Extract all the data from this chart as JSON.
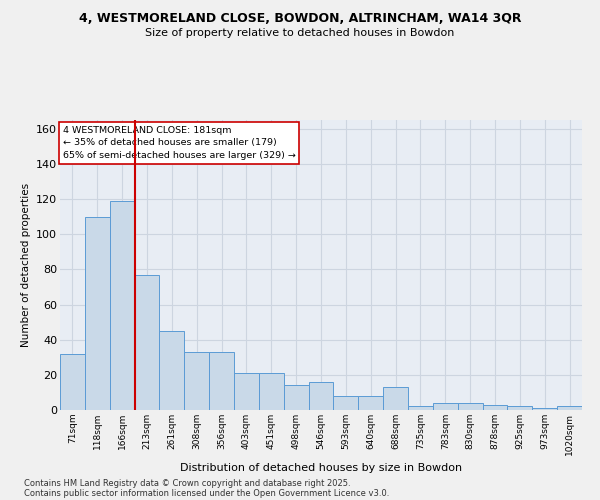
{
  "title1": "4, WESTMORELAND CLOSE, BOWDON, ALTRINCHAM, WA14 3QR",
  "title2": "Size of property relative to detached houses in Bowdon",
  "xlabel": "Distribution of detached houses by size in Bowdon",
  "ylabel": "Number of detached properties",
  "categories": [
    "71sqm",
    "118sqm",
    "166sqm",
    "213sqm",
    "261sqm",
    "308sqm",
    "356sqm",
    "403sqm",
    "451sqm",
    "498sqm",
    "546sqm",
    "593sqm",
    "640sqm",
    "688sqm",
    "735sqm",
    "783sqm",
    "830sqm",
    "878sqm",
    "925sqm",
    "973sqm",
    "1020sqm"
  ],
  "values": [
    32,
    110,
    119,
    77,
    45,
    33,
    33,
    21,
    21,
    14,
    16,
    8,
    8,
    13,
    2,
    4,
    4,
    3,
    2,
    1,
    2
  ],
  "bar_color": "#c9d9e8",
  "bar_edge_color": "#5b9bd5",
  "vline_color": "#cc0000",
  "vline_x": 2.5,
  "annotation_text": "4 WESTMORELAND CLOSE: 181sqm\n← 35% of detached houses are smaller (179)\n65% of semi-detached houses are larger (329) →",
  "annotation_box_color": "#ffffff",
  "annotation_box_edge": "#cc0000",
  "ylim": [
    0,
    165
  ],
  "yticks": [
    0,
    20,
    40,
    60,
    80,
    100,
    120,
    140,
    160
  ],
  "grid_color": "#cdd5e0",
  "background_color": "#e8edf4",
  "fig_background": "#f0f0f0",
  "footer1": "Contains HM Land Registry data © Crown copyright and database right 2025.",
  "footer2": "Contains public sector information licensed under the Open Government Licence v3.0."
}
